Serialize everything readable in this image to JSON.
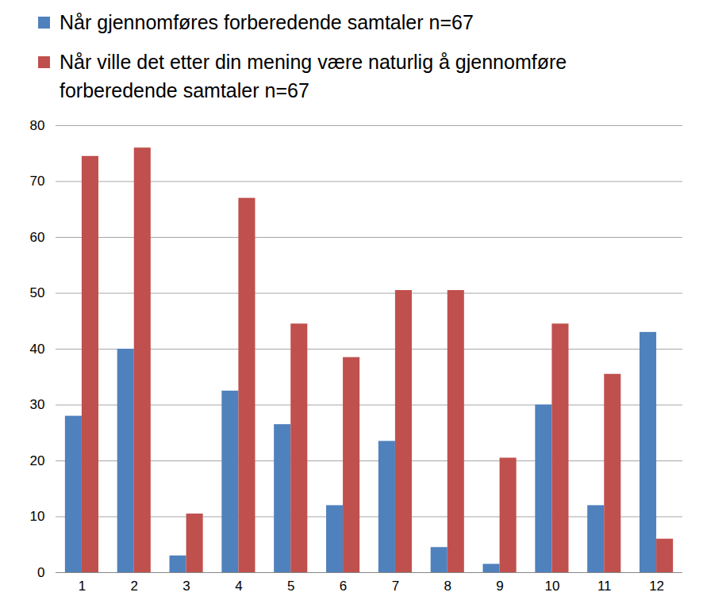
{
  "chart_data": {
    "type": "bar",
    "categories": [
      "1",
      "2",
      "3",
      "4",
      "5",
      "6",
      "7",
      "8",
      "9",
      "10",
      "11",
      "12"
    ],
    "series": [
      {
        "name": "Når gjennomføres forberedende samtaler n=67",
        "color": "#4f81bd",
        "values": [
          28,
          40,
          3,
          32.5,
          26.5,
          12,
          23.5,
          4.5,
          1.5,
          30,
          12,
          43
        ]
      },
      {
        "name": "Når ville det etter din mening være naturlig å gjennomføre forberedende samtaler n=67",
        "color": "#c0504d",
        "values": [
          74.5,
          76,
          10.5,
          67,
          44.5,
          38.5,
          50.5,
          50.5,
          20.5,
          44.5,
          35.5,
          6
        ]
      }
    ],
    "ylim": [
      0,
      80
    ],
    "yticks": [
      0,
      10,
      20,
      30,
      40,
      50,
      60,
      70,
      80
    ],
    "grid": true,
    "legend": "top"
  }
}
